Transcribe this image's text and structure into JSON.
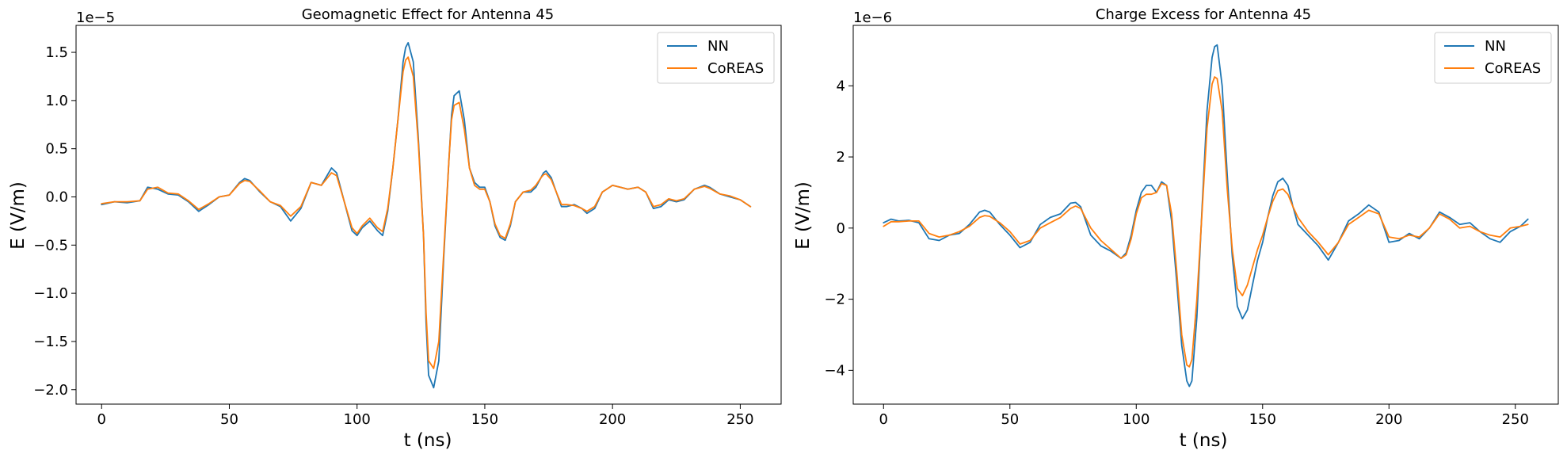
{
  "chart_data": [
    {
      "type": "line",
      "title": "Geomagnetic Effect for Antenna 45",
      "xlabel": "t (ns)",
      "ylabel": "E (V/m)",
      "offset_text": "1e−5",
      "xlim": [
        -10,
        266
      ],
      "ylim": [
        -2.15,
        1.78
      ],
      "xticks": [
        0,
        50,
        100,
        150,
        200,
        250
      ],
      "xtick_labels": [
        "0",
        "50",
        "100",
        "150",
        "200",
        "250"
      ],
      "yticks": [
        1.5,
        1.0,
        0.5,
        0.0,
        -0.5,
        -1.0,
        -1.5,
        -2.0
      ],
      "ytick_labels": [
        "1.5",
        "1.0",
        "0.5",
        "0.0",
        "−0.5",
        "−1.0",
        "−1.5",
        "−2.0"
      ],
      "legend_position": "top-right",
      "grid": false,
      "series": [
        {
          "name": "NN",
          "color": "#1f77b4",
          "x": [
            0,
            5,
            10,
            15,
            18,
            22,
            26,
            30,
            34,
            38,
            42,
            46,
            50,
            54,
            56,
            58,
            62,
            66,
            70,
            74,
            78,
            82,
            86,
            90,
            92,
            95,
            98,
            100,
            102,
            105,
            108,
            110,
            112,
            114,
            116,
            118,
            119,
            120,
            122,
            124,
            126,
            127,
            128,
            130,
            132,
            134,
            136,
            137,
            138,
            140,
            142,
            144,
            146,
            148,
            150,
            152,
            154,
            156,
            158,
            160,
            162,
            165,
            168,
            170,
            172,
            173,
            174,
            176,
            178,
            180,
            182,
            185,
            188,
            190,
            193,
            196,
            200,
            203,
            206,
            210,
            213,
            216,
            219,
            222,
            225,
            228,
            232,
            236,
            238,
            242,
            246,
            250,
            254
          ],
          "y": [
            -0.08,
            -0.05,
            -0.06,
            -0.04,
            0.1,
            0.08,
            0.03,
            0.02,
            -0.05,
            -0.15,
            -0.08,
            0.0,
            0.02,
            0.15,
            0.19,
            0.17,
            0.05,
            -0.05,
            -0.1,
            -0.25,
            -0.12,
            0.15,
            0.12,
            0.3,
            0.25,
            -0.05,
            -0.35,
            -0.4,
            -0.32,
            -0.25,
            -0.35,
            -0.4,
            -0.15,
            0.3,
            0.8,
            1.4,
            1.55,
            1.6,
            1.4,
            0.6,
            -0.4,
            -1.3,
            -1.85,
            -1.98,
            -1.7,
            -0.6,
            0.4,
            0.85,
            1.05,
            1.1,
            0.8,
            0.3,
            0.15,
            0.1,
            0.1,
            -0.05,
            -0.3,
            -0.42,
            -0.45,
            -0.3,
            -0.05,
            0.05,
            0.05,
            0.1,
            0.2,
            0.25,
            0.27,
            0.2,
            0.05,
            -0.1,
            -0.1,
            -0.08,
            -0.12,
            -0.17,
            -0.12,
            0.05,
            0.12,
            0.1,
            0.08,
            0.1,
            0.05,
            -0.12,
            -0.1,
            -0.03,
            -0.05,
            -0.03,
            0.08,
            0.12,
            0.1,
            0.03,
            0.0,
            -0.03,
            -0.1
          ]
        },
        {
          "name": "CoREAS",
          "color": "#ff7f0e",
          "x": [
            0,
            5,
            10,
            15,
            18,
            22,
            26,
            30,
            34,
            38,
            42,
            46,
            50,
            54,
            56,
            58,
            62,
            66,
            70,
            74,
            78,
            82,
            86,
            90,
            92,
            95,
            98,
            100,
            102,
            105,
            108,
            110,
            112,
            114,
            116,
            118,
            119,
            120,
            122,
            124,
            126,
            127,
            128,
            130,
            132,
            134,
            136,
            137,
            138,
            140,
            142,
            144,
            146,
            148,
            150,
            152,
            154,
            156,
            158,
            160,
            162,
            165,
            168,
            170,
            172,
            173,
            174,
            176,
            178,
            180,
            182,
            185,
            188,
            190,
            193,
            196,
            200,
            203,
            206,
            210,
            213,
            216,
            219,
            222,
            225,
            228,
            232,
            236,
            238,
            242,
            246,
            250,
            254
          ],
          "y": [
            -0.07,
            -0.05,
            -0.05,
            -0.04,
            0.08,
            0.1,
            0.04,
            0.03,
            -0.04,
            -0.13,
            -0.07,
            0.0,
            0.02,
            0.14,
            0.17,
            0.16,
            0.06,
            -0.05,
            -0.09,
            -0.2,
            -0.1,
            0.15,
            0.12,
            0.25,
            0.22,
            -0.05,
            -0.32,
            -0.38,
            -0.3,
            -0.22,
            -0.32,
            -0.36,
            -0.12,
            0.3,
            0.8,
            1.3,
            1.42,
            1.45,
            1.25,
            0.55,
            -0.4,
            -1.2,
            -1.7,
            -1.78,
            -1.5,
            -0.55,
            0.4,
            0.8,
            0.95,
            0.98,
            0.7,
            0.3,
            0.12,
            0.08,
            0.08,
            -0.05,
            -0.28,
            -0.4,
            -0.43,
            -0.28,
            -0.05,
            0.05,
            0.07,
            0.12,
            0.2,
            0.23,
            0.24,
            0.18,
            0.05,
            -0.08,
            -0.08,
            -0.09,
            -0.12,
            -0.15,
            -0.1,
            0.05,
            0.12,
            0.1,
            0.08,
            0.1,
            0.05,
            -0.1,
            -0.08,
            -0.02,
            -0.04,
            -0.02,
            0.08,
            0.11,
            0.09,
            0.03,
            0.01,
            -0.03,
            -0.1
          ]
        }
      ]
    },
    {
      "type": "line",
      "title": "Charge Excess for Antenna 45",
      "xlabel": "t (ns)",
      "ylabel": "E (V/m)",
      "offset_text": "1e−6",
      "xlim": [
        -12,
        267
      ],
      "ylim": [
        -4.95,
        5.7
      ],
      "xticks": [
        0,
        50,
        100,
        150,
        200,
        250
      ],
      "xtick_labels": [
        "0",
        "50",
        "100",
        "150",
        "200",
        "250"
      ],
      "yticks": [
        4,
        2,
        0,
        -2,
        -4
      ],
      "ytick_labels": [
        "4",
        "2",
        "0",
        "−2",
        "−4"
      ],
      "legend_position": "top-right",
      "grid": false,
      "series": [
        {
          "name": "NN",
          "color": "#1f77b4",
          "x": [
            0,
            3,
            6,
            10,
            14,
            18,
            22,
            26,
            30,
            34,
            38,
            40,
            42,
            46,
            50,
            54,
            58,
            62,
            66,
            70,
            74,
            76,
            78,
            82,
            86,
            90,
            94,
            96,
            98,
            100,
            102,
            104,
            106,
            108,
            110,
            112,
            114,
            116,
            118,
            120,
            121,
            122,
            124,
            126,
            128,
            130,
            131,
            132,
            134,
            136,
            138,
            140,
            142,
            144,
            146,
            148,
            150,
            152,
            154,
            156,
            158,
            160,
            162,
            164,
            168,
            172,
            176,
            180,
            184,
            188,
            192,
            196,
            200,
            204,
            208,
            212,
            216,
            220,
            224,
            228,
            232,
            236,
            240,
            244,
            248,
            252,
            255
          ],
          "y": [
            0.15,
            0.25,
            0.2,
            0.22,
            0.15,
            -0.3,
            -0.35,
            -0.2,
            -0.15,
            0.1,
            0.45,
            0.5,
            0.45,
            0.1,
            -0.2,
            -0.55,
            -0.4,
            0.1,
            0.3,
            0.4,
            0.7,
            0.72,
            0.6,
            -0.2,
            -0.5,
            -0.65,
            -0.85,
            -0.7,
            -0.2,
            0.5,
            1.0,
            1.2,
            1.2,
            1.0,
            1.3,
            1.2,
            0.2,
            -1.5,
            -3.3,
            -4.3,
            -4.45,
            -4.3,
            -2.5,
            0.5,
            3.3,
            4.8,
            5.1,
            5.15,
            4.0,
            1.5,
            -0.8,
            -2.2,
            -2.55,
            -2.3,
            -1.6,
            -0.9,
            -0.4,
            0.3,
            0.9,
            1.3,
            1.4,
            1.2,
            0.6,
            0.1,
            -0.2,
            -0.5,
            -0.9,
            -0.4,
            0.2,
            0.4,
            0.65,
            0.45,
            -0.4,
            -0.35,
            -0.15,
            -0.3,
            0.0,
            0.45,
            0.3,
            0.1,
            0.15,
            -0.1,
            -0.3,
            -0.4,
            -0.1,
            0.05,
            0.25
          ]
        },
        {
          "name": "CoREAS",
          "color": "#ff7f0e",
          "x": [
            0,
            3,
            6,
            10,
            14,
            18,
            22,
            26,
            30,
            34,
            38,
            40,
            42,
            46,
            50,
            54,
            58,
            62,
            66,
            70,
            74,
            76,
            78,
            82,
            86,
            90,
            94,
            96,
            98,
            100,
            102,
            104,
            106,
            108,
            110,
            112,
            114,
            116,
            118,
            120,
            121,
            122,
            124,
            126,
            128,
            130,
            131,
            132,
            134,
            136,
            138,
            140,
            142,
            144,
            146,
            148,
            150,
            152,
            154,
            156,
            158,
            160,
            162,
            164,
            168,
            172,
            176,
            180,
            184,
            188,
            192,
            196,
            200,
            204,
            208,
            212,
            216,
            220,
            224,
            228,
            232,
            236,
            240,
            244,
            248,
            252,
            255
          ],
          "y": [
            0.05,
            0.18,
            0.18,
            0.2,
            0.2,
            -0.15,
            -0.25,
            -0.2,
            -0.1,
            0.05,
            0.3,
            0.35,
            0.33,
            0.15,
            -0.1,
            -0.45,
            -0.35,
            0.0,
            0.15,
            0.3,
            0.55,
            0.62,
            0.55,
            0.0,
            -0.35,
            -0.6,
            -0.85,
            -0.75,
            -0.3,
            0.4,
            0.85,
            0.95,
            0.95,
            1.0,
            1.25,
            1.2,
            0.4,
            -1.2,
            -3.0,
            -3.85,
            -3.9,
            -3.7,
            -2.0,
            0.4,
            2.8,
            4.05,
            4.25,
            4.2,
            3.3,
            1.1,
            -0.6,
            -1.7,
            -1.9,
            -1.6,
            -1.1,
            -0.6,
            -0.2,
            0.3,
            0.75,
            1.05,
            1.1,
            0.95,
            0.6,
            0.3,
            -0.1,
            -0.4,
            -0.75,
            -0.4,
            0.1,
            0.3,
            0.5,
            0.4,
            -0.25,
            -0.3,
            -0.2,
            -0.25,
            0.0,
            0.4,
            0.25,
            0.0,
            0.05,
            -0.1,
            -0.2,
            -0.25,
            0.0,
            0.05,
            0.1
          ]
        }
      ]
    }
  ]
}
